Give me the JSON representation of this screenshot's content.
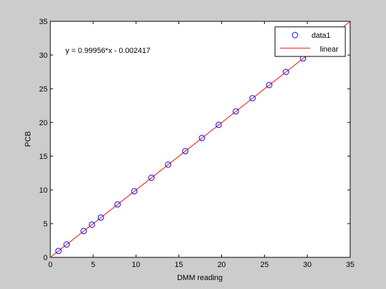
{
  "chart_data": {
    "type": "scatter",
    "xlabel": "DMM reading",
    "ylabel": "PCB",
    "xlim": [
      0,
      35
    ],
    "ylim": [
      0,
      35
    ],
    "xticks": [
      0,
      5,
      10,
      15,
      20,
      25,
      30,
      35
    ],
    "yticks": [
      0,
      5,
      10,
      15,
      20,
      25,
      30,
      35
    ],
    "grid": false,
    "legend_position": "top-right",
    "annotation": "y = 0.99956*x - 0.002417",
    "series": [
      {
        "name": "data1",
        "kind": "markers",
        "marker": "circle",
        "color": "#0000ff",
        "x": [
          0.95,
          1.9,
          3.9,
          4.85,
          5.9,
          7.85,
          9.8,
          11.8,
          13.75,
          15.75,
          17.7,
          19.65,
          21.65,
          23.6,
          25.55,
          27.5,
          29.5
        ],
        "y": [
          0.95,
          1.9,
          3.9,
          4.85,
          5.9,
          7.85,
          9.8,
          11.8,
          13.75,
          15.75,
          17.7,
          19.65,
          21.65,
          23.6,
          25.55,
          27.5,
          29.5
        ]
      },
      {
        "name": "linear",
        "kind": "line",
        "color": "#ff0000",
        "slope": 0.99956,
        "intercept": -0.002417
      }
    ]
  }
}
